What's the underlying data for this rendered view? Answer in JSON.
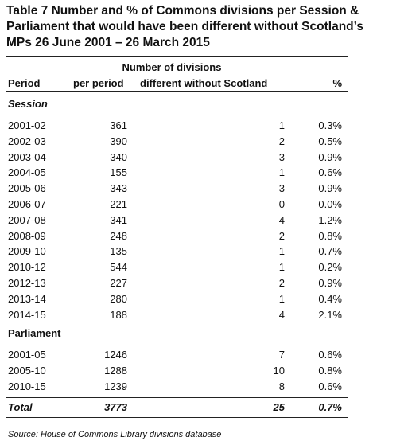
{
  "title": {
    "lines": [
      "Table 7 Number and % of Commons divisions per Session &",
      "Parliament that would have been different without Scotland’s",
      "MPs 26 June 2001 – 26 March 2015"
    ]
  },
  "header": {
    "group": "Number of divisions",
    "columns": [
      "Period",
      "per period",
      "different without Scotland",
      "%"
    ]
  },
  "sections": [
    {
      "label": "Session",
      "rows": [
        [
          "2001-02",
          "361",
          "1",
          "0.3%"
        ],
        [
          "2002-03",
          "390",
          "2",
          "0.5%"
        ],
        [
          "2003-04",
          "340",
          "3",
          "0.9%"
        ],
        [
          "2004-05",
          "155",
          "1",
          "0.6%"
        ],
        [
          "2005-06",
          "343",
          "3",
          "0.9%"
        ],
        [
          "2006-07",
          "221",
          "0",
          "0.0%"
        ],
        [
          "2007-08",
          "341",
          "4",
          "1.2%"
        ],
        [
          "2008-09",
          "248",
          "2",
          "0.8%"
        ],
        [
          "2009-10",
          "135",
          "1",
          "0.7%"
        ],
        [
          "2010-12",
          "544",
          "1",
          "0.2%"
        ],
        [
          "2012-13",
          "227",
          "2",
          "0.9%"
        ],
        [
          "2013-14",
          "280",
          "1",
          "0.4%"
        ],
        [
          "2014-15",
          "188",
          "4",
          "2.1%"
        ]
      ]
    },
    {
      "label": "Parliament",
      "rows": [
        [
          "2001-05",
          "1246",
          "7",
          "0.6%"
        ],
        [
          "2005-10",
          "1288",
          "10",
          "0.8%"
        ],
        [
          "2010-15",
          "1239",
          "8",
          "0.6%"
        ]
      ]
    }
  ],
  "total": [
    "Total",
    "3773",
    "25",
    "0.7%"
  ],
  "source": "Source: House of Commons Library divisions database"
}
